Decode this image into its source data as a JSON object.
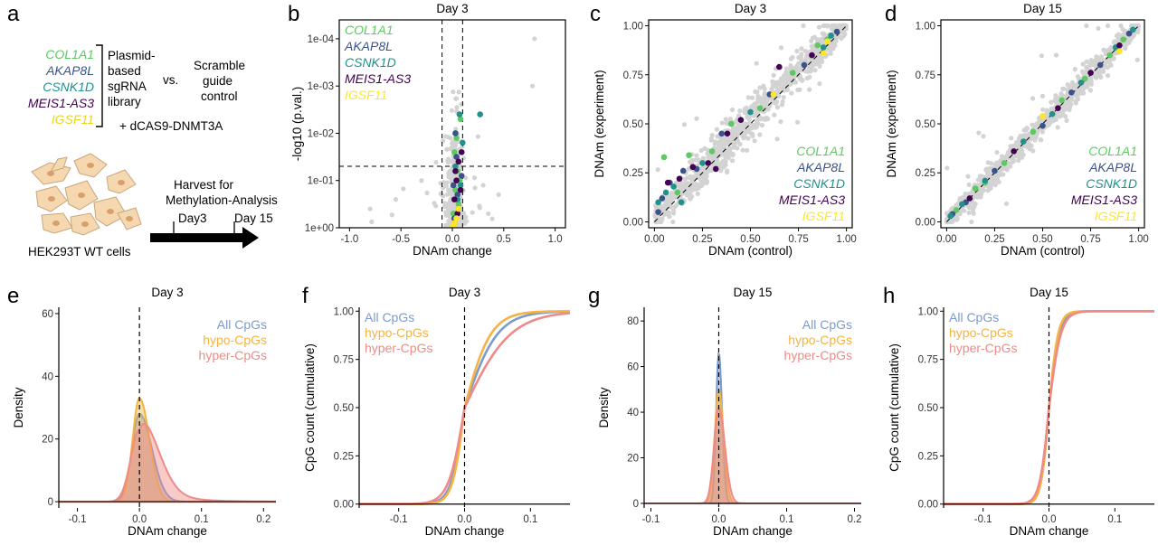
{
  "figure": {
    "panel_letters": [
      "a",
      "b",
      "c",
      "d",
      "e",
      "f",
      "g",
      "h"
    ],
    "colors": {
      "COL1A1": "#5ec962",
      "AKAP8L": "#3b528b",
      "CSNK1D": "#21918c",
      "MEIS1-AS3": "#440154",
      "IGSF11": "#fde725",
      "gray": "#d3d3d3",
      "all": "#7b9bd0",
      "hypo": "#f5b342",
      "hyper": "#f08a86"
    }
  },
  "panel_a": {
    "genes": [
      "COL1A1",
      "AKAP8L",
      "CSNK1D",
      "MEIS1-AS3",
      "IGSF11"
    ],
    "library_lines": [
      "Plasmid-",
      "based",
      "sgRNA",
      "library"
    ],
    "vs": "vs.",
    "control_lines": [
      "Scramble",
      "guide",
      "control"
    ],
    "dcas": "+ dCAS9-DNMT3A",
    "timeline_title_lines": [
      "Harvest for",
      "Methylation-Analysis"
    ],
    "day3": "Day3",
    "day15": "Day 15",
    "cells_label": "HEK293T WT cells"
  },
  "chart_data": [
    {
      "id": "b",
      "type": "scatter",
      "title": "Day 3",
      "xlabel": "DNAm change",
      "ylabel": "-log10 (p.val.)",
      "xlim": [
        -1.1,
        1.1
      ],
      "ylim": [
        0,
        4.4
      ],
      "xticks": [
        -1.0,
        -0.5,
        0.0,
        0.5,
        1.0
      ],
      "xtick_labels": [
        "-1.0",
        "-0.5",
        "0.0",
        "0.5",
        "1.0"
      ],
      "yticks": [
        0,
        1,
        2,
        3,
        4
      ],
      "ytick_labels": [
        "1e+00",
        "1e-01",
        "1e-02",
        "1e-03",
        "1e-04"
      ],
      "vlines": [
        -0.1,
        0.1
      ],
      "hline": 1.3,
      "legend": [
        "COL1A1",
        "AKAP8L",
        "CSNK1D",
        "MEIS1-AS3",
        "IGSF11"
      ],
      "legend_position": "top-left",
      "series": [
        {
          "name": "COL1A1",
          "x": [
            0.02,
            0.05,
            0.03,
            0.08,
            0.06,
            0.01,
            0.04,
            0.07,
            0.03
          ],
          "y": [
            1.6,
            1.2,
            0.8,
            2.3,
            0.5,
            0.3,
            1.9,
            1.0,
            0.2
          ]
        },
        {
          "name": "AKAP8L",
          "x": [
            0.01,
            0.04,
            0.06,
            0.02,
            0.09,
            0.05,
            0.03
          ],
          "y": [
            0.9,
            1.5,
            0.4,
            0.2,
            1.1,
            0.7,
            2.0
          ]
        },
        {
          "name": "CSNK1D",
          "x": [
            0.03,
            0.07,
            0.1,
            0.05,
            0.02,
            0.08,
            0.27
          ],
          "y": [
            1.3,
            2.4,
            1.8,
            0.6,
            0.1,
            0.9,
            2.4
          ]
        },
        {
          "name": "MEIS1-AS3",
          "x": [
            0.04,
            0.06,
            0.02,
            0.08,
            0.05,
            0.09,
            0.03
          ],
          "y": [
            1.0,
            1.4,
            0.6,
            0.8,
            0.3,
            1.6,
            1.2
          ]
        },
        {
          "name": "IGSF11",
          "x": [
            0.02,
            0.06,
            0.04,
            0.01
          ],
          "y": [
            0.1,
            0.4,
            0.2,
            0.05
          ]
        }
      ]
    },
    {
      "id": "c",
      "type": "scatter",
      "title": "Day 3",
      "xlabel": "DNAm (control)",
      "ylabel": "DNAm (experiment)",
      "xlim": [
        -0.03,
        1.03
      ],
      "ylim": [
        -0.03,
        1.03
      ],
      "xticks": [
        0,
        0.25,
        0.5,
        0.75,
        1.0
      ],
      "xtick_labels": [
        "0.00",
        "0.25",
        "0.50",
        "0.75",
        "1.00"
      ],
      "yticks": [
        0,
        0.25,
        0.5,
        0.75,
        1.0
      ],
      "ytick_labels": [
        "0.00",
        "0.25",
        "0.50",
        "0.75",
        "1.00"
      ],
      "diagonal": true,
      "legend": [
        "COL1A1",
        "AKAP8L",
        "CSNK1D",
        "MEIS1-AS3",
        "IGSF11"
      ],
      "legend_position": "bottom-right",
      "series": [
        {
          "name": "COL1A1",
          "x": [
            0.05,
            0.12,
            0.3,
            0.55,
            0.72,
            0.85,
            0.9,
            0.18,
            0.4
          ],
          "y": [
            0.33,
            0.15,
            0.36,
            0.58,
            0.76,
            0.9,
            0.93,
            0.34,
            0.5
          ]
        },
        {
          "name": "AKAP8L",
          "x": [
            0.04,
            0.08,
            0.15,
            0.35,
            0.6,
            0.78,
            0.95,
            0.02,
            0.22
          ],
          "y": [
            0.12,
            0.2,
            0.26,
            0.45,
            0.65,
            0.8,
            0.97,
            0.05,
            0.27
          ]
        },
        {
          "name": "CSNK1D",
          "x": [
            0.02,
            0.06,
            0.1,
            0.25,
            0.5,
            0.88,
            0.92,
            0.14
          ],
          "y": [
            0.1,
            0.15,
            0.18,
            0.3,
            0.56,
            0.89,
            0.95,
            0.1
          ]
        },
        {
          "name": "MEIS1-AS3",
          "x": [
            0.07,
            0.13,
            0.2,
            0.28,
            0.38,
            0.45,
            0.65,
            0.82,
            0.32
          ],
          "y": [
            0.2,
            0.22,
            0.28,
            0.3,
            0.45,
            0.52,
            0.79,
            0.85,
            0.27
          ]
        },
        {
          "name": "IGSF11",
          "x": [
            0.62,
            0.88,
            0.9
          ],
          "y": [
            0.65,
            0.86,
            0.92
          ]
        }
      ]
    },
    {
      "id": "d",
      "type": "scatter",
      "title": "Day 15",
      "xlabel": "DNAm (control)",
      "ylabel": "DNAm (experiment)",
      "xlim": [
        -0.03,
        1.03
      ],
      "ylim": [
        -0.03,
        1.03
      ],
      "xticks": [
        0,
        0.25,
        0.5,
        0.75,
        1.0
      ],
      "xtick_labels": [
        "0.00",
        "0.25",
        "0.50",
        "0.75",
        "1.00"
      ],
      "yticks": [
        0,
        0.25,
        0.5,
        0.75,
        1.0
      ],
      "ytick_labels": [
        "0.00",
        "0.25",
        "0.50",
        "0.75",
        "1.00"
      ],
      "diagonal": true,
      "legend": [
        "COL1A1",
        "AKAP8L",
        "CSNK1D",
        "MEIS1-AS3",
        "IGSF11"
      ],
      "legend_position": "bottom-right",
      "series": [
        {
          "name": "COL1A1",
          "x": [
            0.05,
            0.15,
            0.3,
            0.45,
            0.6,
            0.72,
            0.85,
            0.92,
            0.2
          ],
          "y": [
            0.06,
            0.17,
            0.3,
            0.46,
            0.62,
            0.73,
            0.85,
            0.93,
            0.2
          ]
        },
        {
          "name": "AKAP8L",
          "x": [
            0.03,
            0.1,
            0.25,
            0.5,
            0.65,
            0.8,
            0.95
          ],
          "y": [
            0.04,
            0.1,
            0.26,
            0.49,
            0.66,
            0.8,
            0.96
          ]
        },
        {
          "name": "CSNK1D",
          "x": [
            0.02,
            0.08,
            0.2,
            0.4,
            0.55,
            0.7,
            0.88,
            0.97
          ],
          "y": [
            0.03,
            0.09,
            0.21,
            0.41,
            0.55,
            0.71,
            0.89,
            0.98
          ]
        },
        {
          "name": "MEIS1-AS3",
          "x": [
            0.12,
            0.35,
            0.58,
            0.75,
            0.9
          ],
          "y": [
            0.12,
            0.36,
            0.58,
            0.76,
            0.9
          ]
        },
        {
          "name": "IGSF11",
          "x": [
            0.5,
            0.9
          ],
          "y": [
            0.54,
            0.87
          ]
        }
      ]
    },
    {
      "id": "e",
      "type": "area",
      "title": "Day 3",
      "xlabel": "DNAm change",
      "ylabel": "Density",
      "xlim": [
        -0.13,
        0.22
      ],
      "ylim": [
        -2,
        62
      ],
      "xticks": [
        -0.1,
        0.0,
        0.1,
        0.2
      ],
      "xtick_labels": [
        "-0.1",
        "0.0",
        "0.1",
        "0.2"
      ],
      "yticks": [
        0,
        20,
        40,
        60
      ],
      "ytick_labels": [
        "0",
        "20",
        "40",
        "60"
      ],
      "vline": 0,
      "legend": [
        "All CpGs",
        "hypo-CpGs",
        "hyper-CpGs"
      ],
      "legend_position": "top-right",
      "series": [
        {
          "name": "All CpGs",
          "peak": 28,
          "sigma_left": 0.012,
          "sigma_right": 0.02,
          "tail": 0.0
        },
        {
          "name": "hypo-CpGs",
          "peak": 33,
          "sigma_left": 0.011,
          "sigma_right": 0.016,
          "tail": 0.0
        },
        {
          "name": "hyper-CpGs",
          "peak": 23,
          "sigma_left": 0.014,
          "sigma_right": 0.03,
          "tail": 0.25
        }
      ]
    },
    {
      "id": "f",
      "type": "line",
      "title": "Day 3",
      "xlabel": "DNAm change",
      "ylabel": "CpG count (cumulative)",
      "xlim": [
        -0.16,
        0.16
      ],
      "ylim": [
        -0.02,
        1.02
      ],
      "xticks": [
        -0.1,
        0.0,
        0.1
      ],
      "xtick_labels": [
        "-0.1",
        "0.0",
        "0.1"
      ],
      "yticks": [
        0,
        0.25,
        0.5,
        0.75,
        1.0
      ],
      "ytick_labels": [
        "0.00",
        "0.25",
        "0.50",
        "0.75",
        "1.00"
      ],
      "vline": 0,
      "legend": [
        "All CpGs",
        "hypo-CpGs",
        "hyper-CpGs"
      ],
      "legend_position": "top-left",
      "series": [
        {
          "name": "All CpGs",
          "scale_left": 0.01,
          "scale_right": 0.025
        },
        {
          "name": "hypo-CpGs",
          "scale_left": 0.009,
          "scale_right": 0.02
        },
        {
          "name": "hyper-CpGs",
          "scale_left": 0.012,
          "scale_right": 0.035
        }
      ]
    },
    {
      "id": "g",
      "type": "area",
      "title": "Day 15",
      "xlabel": "DNAm change",
      "ylabel": "Density",
      "xlim": [
        -0.11,
        0.21
      ],
      "ylim": [
        -2,
        86
      ],
      "xticks": [
        -0.1,
        0.0,
        0.1,
        0.2
      ],
      "xtick_labels": [
        "-0.1",
        "0.0",
        "0.1",
        "0.2"
      ],
      "yticks": [
        0,
        20,
        40,
        60,
        80
      ],
      "ytick_labels": [
        "0",
        "20",
        "40",
        "60",
        "80"
      ],
      "vline": 0,
      "legend": [
        "All CpGs",
        "hypo-CpGs",
        "hyper-CpGs"
      ],
      "legend_position": "top-right",
      "series": [
        {
          "name": "All CpGs",
          "peak": 66,
          "sigma_left": 0.004,
          "sigma_right": 0.005,
          "tail": 0.0
        },
        {
          "name": "hypo-CpGs",
          "peak": 50,
          "sigma_left": 0.006,
          "sigma_right": 0.007,
          "tail": 0.0
        },
        {
          "name": "hyper-CpGs",
          "peak": 42,
          "sigma_left": 0.007,
          "sigma_right": 0.009,
          "tail": 0.0
        }
      ]
    },
    {
      "id": "h",
      "type": "line",
      "title": "Day 15",
      "xlabel": "DNAm change",
      "ylabel": "CpG count (cumulative)",
      "xlim": [
        -0.16,
        0.16
      ],
      "ylim": [
        -0.02,
        1.02
      ],
      "xticks": [
        -0.1,
        0.0,
        0.1
      ],
      "xtick_labels": [
        "-0.1",
        "0.0",
        "0.1"
      ],
      "yticks": [
        0,
        0.25,
        0.5,
        0.75,
        1.0
      ],
      "ytick_labels": [
        "0.00",
        "0.25",
        "0.50",
        "0.75",
        "1.00"
      ],
      "vline": 0,
      "legend": [
        "All CpGs",
        "hypo-CpGs",
        "hyper-CpGs"
      ],
      "legend_position": "top-left",
      "series": [
        {
          "name": "All CpGs",
          "scale_left": 0.006,
          "scale_right": 0.008
        },
        {
          "name": "hypo-CpGs",
          "scale_left": 0.006,
          "scale_right": 0.007
        },
        {
          "name": "hyper-CpGs",
          "scale_left": 0.007,
          "scale_right": 0.009
        }
      ]
    }
  ]
}
